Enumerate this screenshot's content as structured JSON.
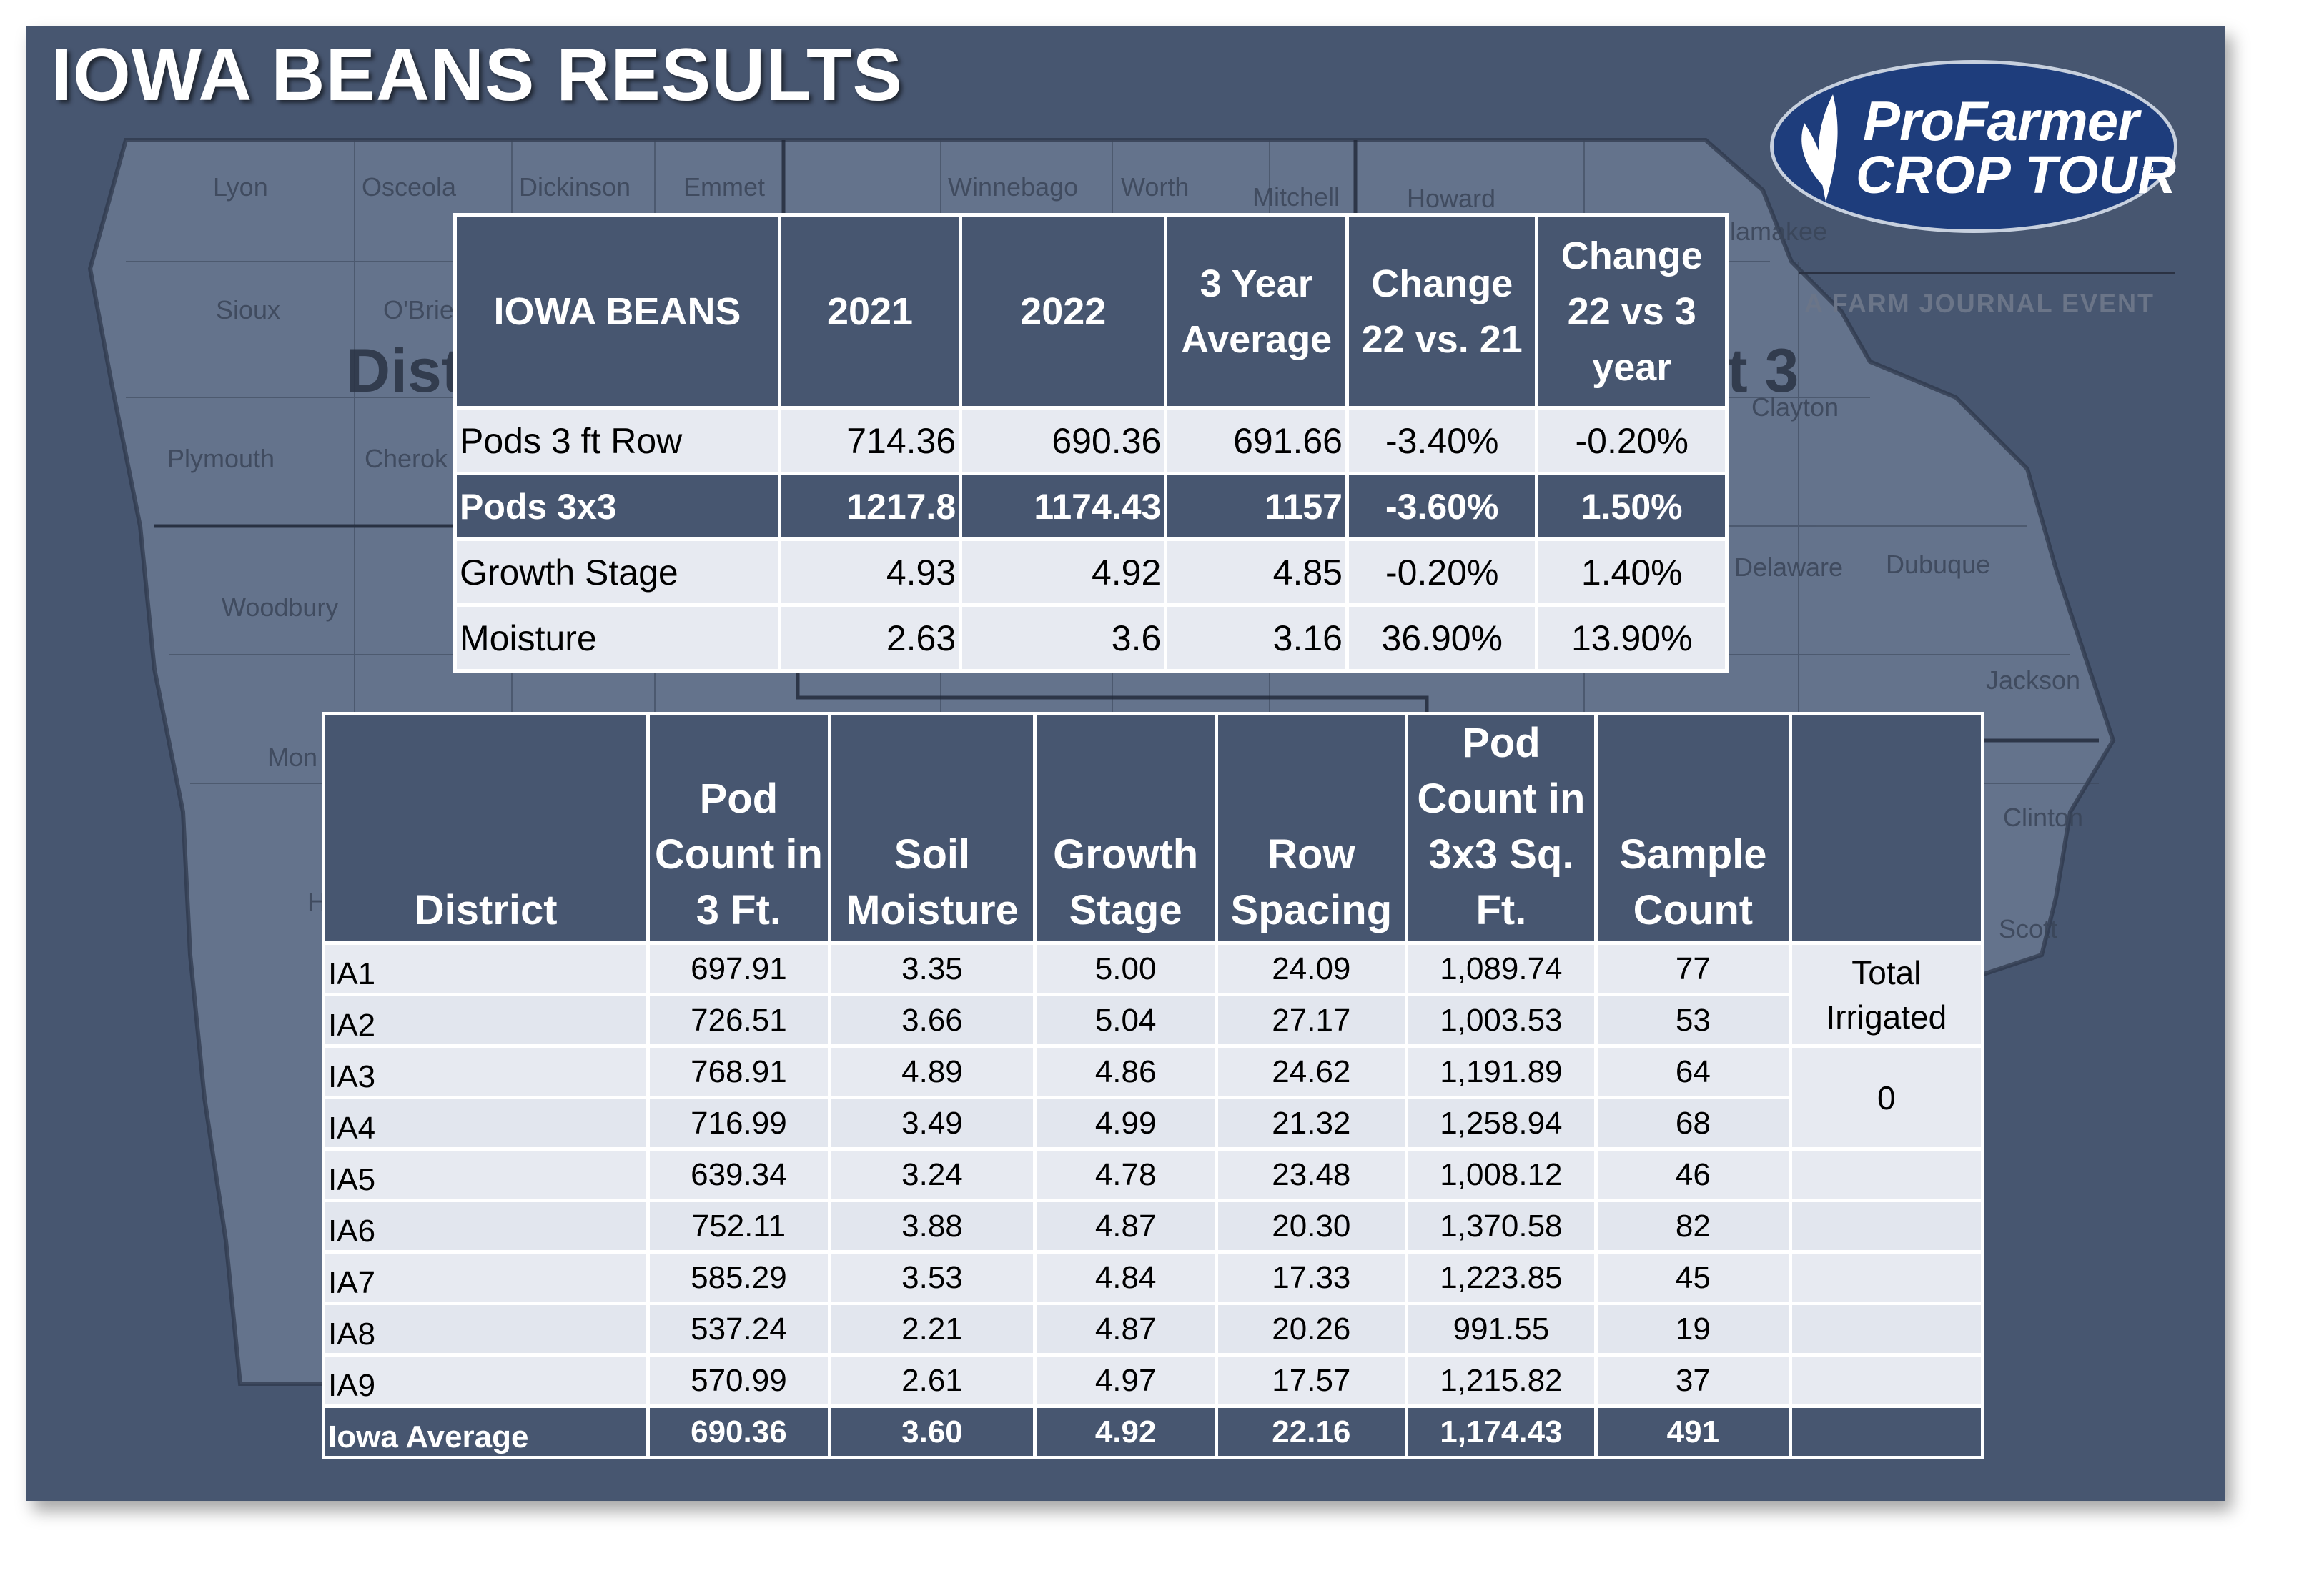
{
  "title": "IOWA BEANS RESULTS",
  "logo": {
    "line1": "ProFarmer",
    "line2": "CROP TOUR",
    "tm": "™",
    "subtitle": "A FARM JOURNAL EVENT"
  },
  "map": {
    "counties": [
      "Lyon",
      "Osceola",
      "Dickinson",
      "Emmet",
      "Winnebago",
      "Worth",
      "Mitchell",
      "Howard",
      "Allamakee",
      "Sioux",
      "O'Brie",
      "Plymouth",
      "Cherok",
      "Woodbury",
      "Clayton",
      "Delaware",
      "Dubuque",
      "Jackson",
      "Clinton",
      "Scott",
      "Mon",
      "H"
    ],
    "district_left": "Dist",
    "district_right": "t 3"
  },
  "summary_table": {
    "headers": [
      "IOWA BEANS",
      "2021",
      "2022",
      "3 Year Average",
      "Change 22 vs. 21",
      "Change 22 vs 3 year"
    ],
    "rows": [
      {
        "label": "Pods 3 ft Row",
        "v2021": "714.36",
        "v2022": "690.36",
        "avg3": "691.66",
        "chg21": "-3.40%",
        "chg3": "-0.20%",
        "highlight": false
      },
      {
        "label": "Pods 3x3",
        "v2021": "1217.8",
        "v2022": "1174.43",
        "avg3": "1157",
        "chg21": "-3.60%",
        "chg3": "1.50%",
        "highlight": true
      },
      {
        "label": "Growth Stage",
        "v2021": "4.93",
        "v2022": "4.92",
        "avg3": "4.85",
        "chg21": "-0.20%",
        "chg3": "1.40%",
        "highlight": false
      },
      {
        "label": "Moisture",
        "v2021": "2.63",
        "v2022": "3.6",
        "avg3": "3.16",
        "chg21": "36.90%",
        "chg3": "13.90%",
        "highlight": false
      }
    ]
  },
  "district_table": {
    "headers": [
      "District",
      "Pod Count in 3 Ft.",
      "Soil Moisture",
      "Growth Stage",
      "Row Spacing",
      "Pod Count in 3x3 Sq. Ft.",
      "Sample Count",
      ""
    ],
    "rows": [
      {
        "district": "IA1",
        "pod3ft": "697.91",
        "soil": "3.35",
        "growth": "5.00",
        "spacing": "24.09",
        "pod3x3": "1,089.74",
        "samples": "77"
      },
      {
        "district": "IA2",
        "pod3ft": "726.51",
        "soil": "3.66",
        "growth": "5.04",
        "spacing": "27.17",
        "pod3x3": "1,003.53",
        "samples": "53"
      },
      {
        "district": "IA3",
        "pod3ft": "768.91",
        "soil": "4.89",
        "growth": "4.86",
        "spacing": "24.62",
        "pod3x3": "1,191.89",
        "samples": "64"
      },
      {
        "district": "IA4",
        "pod3ft": "716.99",
        "soil": "3.49",
        "growth": "4.99",
        "spacing": "21.32",
        "pod3x3": "1,258.94",
        "samples": "68"
      },
      {
        "district": "IA5",
        "pod3ft": "639.34",
        "soil": "3.24",
        "growth": "4.78",
        "spacing": "23.48",
        "pod3x3": "1,008.12",
        "samples": "46"
      },
      {
        "district": "IA6",
        "pod3ft": "752.11",
        "soil": "3.88",
        "growth": "4.87",
        "spacing": "20.30",
        "pod3x3": "1,370.58",
        "samples": "82"
      },
      {
        "district": "IA7",
        "pod3ft": "585.29",
        "soil": "3.53",
        "growth": "4.84",
        "spacing": "17.33",
        "pod3x3": "1,223.85",
        "samples": "45"
      },
      {
        "district": "IA8",
        "pod3ft": "537.24",
        "soil": "2.21",
        "growth": "4.87",
        "spacing": "20.26",
        "pod3x3": "991.55",
        "samples": "19"
      },
      {
        "district": "IA9",
        "pod3ft": "570.99",
        "soil": "2.61",
        "growth": "4.97",
        "spacing": "17.57",
        "pod3x3": "1,215.82",
        "samples": "37"
      }
    ],
    "average": {
      "district": "Iowa Average",
      "pod3ft": "690.36",
      "soil": "3.60",
      "growth": "4.92",
      "spacing": "22.16",
      "pod3x3": "1,174.43",
      "samples": "491"
    },
    "side_label": "Total Irrigated",
    "side_value": "0"
  },
  "colors": {
    "background": "#475670",
    "header": "#475670",
    "row_light": "#e7eaf1",
    "logo_oval": "#1e3d7c"
  }
}
